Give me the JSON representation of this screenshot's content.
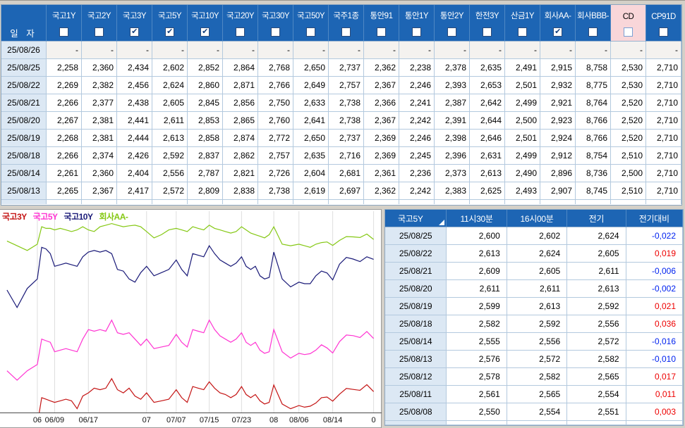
{
  "window": {
    "bg": "#d4d0c8",
    "header_blue": "#1d65b4",
    "date_cell_bg": "#dce8f4",
    "grid_line": "#b3c9de",
    "highlight_pink": "#f9d6d9",
    "positive_red": "#ee0000",
    "negative_blue": "#0022f0"
  },
  "top_table": {
    "date_header": "일 자",
    "columns": [
      {
        "label": "국고1Y",
        "checked": false,
        "highlight": false
      },
      {
        "label": "국고2Y",
        "checked": false,
        "highlight": false
      },
      {
        "label": "국고3Y",
        "checked": true,
        "highlight": false
      },
      {
        "label": "국고5Y",
        "checked": true,
        "highlight": false
      },
      {
        "label": "국고10Y",
        "checked": true,
        "highlight": false
      },
      {
        "label": "국고20Y",
        "checked": false,
        "highlight": false
      },
      {
        "label": "국고30Y",
        "checked": false,
        "highlight": false
      },
      {
        "label": "국고50Y",
        "checked": false,
        "highlight": false
      },
      {
        "label": "국주1종",
        "checked": false,
        "highlight": false
      },
      {
        "label": "통안91",
        "checked": false,
        "highlight": false
      },
      {
        "label": "통안1Y",
        "checked": false,
        "highlight": false
      },
      {
        "label": "통안2Y",
        "checked": false,
        "highlight": false
      },
      {
        "label": "한전3Y",
        "checked": false,
        "highlight": false
      },
      {
        "label": "산금1Y",
        "checked": false,
        "highlight": false
      },
      {
        "label": "회사AA-",
        "checked": true,
        "highlight": false
      },
      {
        "label": "회사BBB-",
        "checked": false,
        "highlight": false
      },
      {
        "label": "CD",
        "checked": false,
        "highlight": true
      },
      {
        "label": "CP91D",
        "checked": false,
        "highlight": false
      }
    ],
    "rows": [
      {
        "date": "25/08/26",
        "dim": true,
        "values": [
          "-",
          "-",
          "-",
          "-",
          "-",
          "-",
          "-",
          "-",
          "-",
          "-",
          "-",
          "-",
          "-",
          "-",
          "-",
          "-",
          "-",
          "-"
        ]
      },
      {
        "date": "25/08/25",
        "dim": false,
        "values": [
          "2,258",
          "2,360",
          "2,434",
          "2,602",
          "2,852",
          "2,864",
          "2,768",
          "2,650",
          "2,737",
          "2,362",
          "2,238",
          "2,378",
          "2,635",
          "2,491",
          "2,915",
          "8,758",
          "2,530",
          "2,710"
        ]
      },
      {
        "date": "25/08/22",
        "dim": false,
        "values": [
          "2,269",
          "2,382",
          "2,456",
          "2,624",
          "2,860",
          "2,871",
          "2,766",
          "2,649",
          "2,757",
          "2,367",
          "2,246",
          "2,393",
          "2,653",
          "2,501",
          "2,932",
          "8,775",
          "2,530",
          "2,710"
        ]
      },
      {
        "date": "25/08/21",
        "dim": false,
        "values": [
          "2,266",
          "2,377",
          "2,438",
          "2,605",
          "2,845",
          "2,856",
          "2,750",
          "2,633",
          "2,738",
          "2,366",
          "2,241",
          "2,387",
          "2,642",
          "2,499",
          "2,921",
          "8,764",
          "2,520",
          "2,710"
        ]
      },
      {
        "date": "25/08/20",
        "dim": false,
        "values": [
          "2,267",
          "2,381",
          "2,441",
          "2,611",
          "2,853",
          "2,865",
          "2,760",
          "2,641",
          "2,738",
          "2,367",
          "2,242",
          "2,391",
          "2,644",
          "2,500",
          "2,923",
          "8,766",
          "2,520",
          "2,710"
        ]
      },
      {
        "date": "25/08/19",
        "dim": false,
        "values": [
          "2,268",
          "2,381",
          "2,444",
          "2,613",
          "2,858",
          "2,874",
          "2,772",
          "2,650",
          "2,737",
          "2,369",
          "2,246",
          "2,398",
          "2,646",
          "2,501",
          "2,924",
          "8,766",
          "2,520",
          "2,710"
        ]
      },
      {
        "date": "25/08/18",
        "dim": false,
        "values": [
          "2,266",
          "2,374",
          "2,426",
          "2,592",
          "2,837",
          "2,862",
          "2,757",
          "2,635",
          "2,716",
          "2,369",
          "2,245",
          "2,396",
          "2,631",
          "2,499",
          "2,912",
          "8,754",
          "2,510",
          "2,710"
        ]
      },
      {
        "date": "25/08/14",
        "dim": false,
        "values": [
          "2,261",
          "2,360",
          "2,404",
          "2,556",
          "2,787",
          "2,821",
          "2,726",
          "2,604",
          "2,681",
          "2,361",
          "2,236",
          "2,373",
          "2,613",
          "2,490",
          "2,896",
          "8,736",
          "2,500",
          "2,710"
        ]
      },
      {
        "date": "25/08/13",
        "dim": false,
        "values": [
          "2,265",
          "2,367",
          "2,417",
          "2,572",
          "2,809",
          "2,838",
          "2,738",
          "2,619",
          "2,697",
          "2,362",
          "2,242",
          "2,383",
          "2,625",
          "2,493",
          "2,907",
          "8,745",
          "2,510",
          "2,710"
        ]
      }
    ]
  },
  "chart_data": {
    "type": "line",
    "title": "",
    "xlabel": "",
    "ylabel": "",
    "grid": "vertical-only",
    "legend_position": "top-left-overlay",
    "ymin": 2.368,
    "ymax": 3.002,
    "x_tick_labels": [
      "06",
      "06/09",
      "06/17",
      "07",
      "07/07",
      "07/15",
      "07/23",
      "08",
      "08/06",
      "08/14",
      "0"
    ],
    "ticks": [
      {
        "label": "06",
        "i": 3
      },
      {
        "label": "06/09",
        "i": 7
      },
      {
        "label": "06/17",
        "i": 13
      },
      {
        "label": "07",
        "i": 23
      },
      {
        "label": "07/07",
        "i": 27
      },
      {
        "label": "07/15",
        "i": 33
      },
      {
        "label": "07/23",
        "i": 39
      },
      {
        "label": "08",
        "i": 46
      },
      {
        "label": "08/06",
        "i": 49
      },
      {
        "label": "08/14",
        "i": 55
      },
      {
        "label": "0",
        "i": 61
      }
    ],
    "x_anchors": [
      [
        0,
        0.011
      ],
      [
        3,
        0.092
      ],
      [
        7,
        0.138
      ],
      [
        13,
        0.228
      ],
      [
        23,
        0.383
      ],
      [
        27,
        0.462
      ],
      [
        33,
        0.55
      ],
      [
        39,
        0.636
      ],
      [
        46,
        0.722
      ],
      [
        49,
        0.789
      ],
      [
        55,
        0.879
      ],
      [
        61,
        0.988
      ]
    ],
    "dates": [
      "05/28",
      "05/29",
      "05/30",
      "06/02",
      "06/03",
      "06/04",
      "06/05",
      "06/09",
      "06/10",
      "06/11",
      "06/12",
      "06/13",
      "06/16",
      "06/17",
      "06/18",
      "06/19",
      "06/20",
      "06/23",
      "06/24",
      "06/25",
      "06/26",
      "06/27",
      "06/30",
      "07/01",
      "07/02",
      "07/03",
      "07/04",
      "07/07",
      "07/08",
      "07/09",
      "07/10",
      "07/11",
      "07/14",
      "07/15",
      "07/16",
      "07/17",
      "07/18",
      "07/21",
      "07/22",
      "07/23",
      "07/24",
      "07/25",
      "07/28",
      "07/29",
      "07/30",
      "07/31",
      "08/01",
      "08/04",
      "08/05",
      "08/06",
      "08/07",
      "08/08",
      "08/11",
      "08/12",
      "08/13",
      "08/14",
      "08/18",
      "08/19",
      "08/20",
      "08/21",
      "08/22",
      "08/25"
    ],
    "series": [
      {
        "name": "국고3Y",
        "color": "#c41414",
        "values": [
          2.3,
          2.29,
          2.31,
          2.33,
          2.415,
          2.41,
          2.405,
          2.4,
          2.405,
          2.41,
          2.405,
          2.38,
          2.42,
          2.43,
          2.445,
          2.44,
          2.445,
          2.475,
          2.44,
          2.43,
          2.445,
          2.42,
          2.41,
          2.43,
          2.4,
          2.405,
          2.41,
          2.44,
          2.415,
          2.4,
          2.45,
          2.445,
          2.44,
          2.465,
          2.445,
          2.43,
          2.425,
          2.415,
          2.425,
          2.45,
          2.425,
          2.415,
          2.425,
          2.405,
          2.395,
          2.4,
          2.455,
          2.395,
          2.38,
          2.39,
          2.385,
          2.388,
          2.398,
          2.415,
          2.417,
          2.404,
          2.426,
          2.444,
          2.441,
          2.438,
          2.456,
          2.434
        ]
      },
      {
        "name": "국고5Y",
        "color": "#ff34d2",
        "values": [
          2.5,
          2.47,
          2.5,
          2.52,
          2.6,
          2.595,
          2.59,
          2.56,
          2.565,
          2.57,
          2.565,
          2.56,
          2.6,
          2.63,
          2.625,
          2.63,
          2.625,
          2.66,
          2.62,
          2.615,
          2.62,
          2.6,
          2.58,
          2.6,
          2.57,
          2.575,
          2.58,
          2.615,
          2.59,
          2.575,
          2.63,
          2.625,
          2.62,
          2.66,
          2.63,
          2.61,
          2.6,
          2.59,
          2.6,
          2.62,
          2.59,
          2.58,
          2.59,
          2.565,
          2.555,
          2.56,
          2.63,
          2.56,
          2.54,
          2.555,
          2.551,
          2.554,
          2.565,
          2.582,
          2.572,
          2.556,
          2.592,
          2.613,
          2.611,
          2.605,
          2.624,
          2.602
        ]
      },
      {
        "name": "국고10Y",
        "color": "#1a1a78",
        "values": [
          2.755,
          2.7,
          2.76,
          2.79,
          2.89,
          2.885,
          2.87,
          2.83,
          2.835,
          2.84,
          2.835,
          2.83,
          2.86,
          2.875,
          2.88,
          2.875,
          2.88,
          2.87,
          2.82,
          2.815,
          2.79,
          2.78,
          2.81,
          2.83,
          2.8,
          2.81,
          2.82,
          2.85,
          2.82,
          2.8,
          2.87,
          2.865,
          2.86,
          2.895,
          2.87,
          2.85,
          2.84,
          2.83,
          2.84,
          2.86,
          2.83,
          2.82,
          2.83,
          2.8,
          2.79,
          2.795,
          2.875,
          2.79,
          2.765,
          2.78,
          2.775,
          2.775,
          2.8,
          2.815,
          2.809,
          2.787,
          2.837,
          2.858,
          2.853,
          2.845,
          2.86,
          2.852
        ]
      },
      {
        "name": "회사AA-",
        "color": "#85c814",
        "values": [
          2.91,
          2.895,
          2.88,
          2.9,
          2.955,
          2.95,
          2.95,
          2.945,
          2.95,
          2.945,
          2.94,
          2.945,
          2.955,
          2.945,
          2.94,
          2.955,
          2.96,
          2.965,
          2.96,
          2.955,
          2.958,
          2.96,
          2.955,
          2.94,
          2.92,
          2.93,
          2.945,
          2.95,
          2.945,
          2.94,
          2.955,
          2.95,
          2.945,
          2.96,
          2.95,
          2.945,
          2.94,
          2.935,
          2.94,
          2.955,
          2.945,
          2.935,
          2.93,
          2.925,
          2.92,
          2.93,
          2.955,
          2.9,
          2.895,
          2.9,
          2.895,
          2.89,
          2.9,
          2.905,
          2.907,
          2.896,
          2.912,
          2.924,
          2.923,
          2.921,
          2.932,
          2.915
        ]
      }
    ]
  },
  "right_table": {
    "headers": [
      "국고5Y",
      "11시30분",
      "16시00분",
      "전기",
      "전기대비"
    ],
    "rows": [
      {
        "date": "25/08/25",
        "t1130": "2,600",
        "t1600": "2,602",
        "prev": "2,624",
        "chg": "-0,022",
        "dir": "down"
      },
      {
        "date": "25/08/22",
        "t1130": "2,613",
        "t1600": "2,624",
        "prev": "2,605",
        "chg": "0,019",
        "dir": "up"
      },
      {
        "date": "25/08/21",
        "t1130": "2,609",
        "t1600": "2,605",
        "prev": "2,611",
        "chg": "-0,006",
        "dir": "down"
      },
      {
        "date": "25/08/20",
        "t1130": "2,611",
        "t1600": "2,611",
        "prev": "2,613",
        "chg": "-0,002",
        "dir": "down"
      },
      {
        "date": "25/08/19",
        "t1130": "2,599",
        "t1600": "2,613",
        "prev": "2,592",
        "chg": "0,021",
        "dir": "up"
      },
      {
        "date": "25/08/18",
        "t1130": "2,582",
        "t1600": "2,592",
        "prev": "2,556",
        "chg": "0,036",
        "dir": "up"
      },
      {
        "date": "25/08/14",
        "t1130": "2,555",
        "t1600": "2,556",
        "prev": "2,572",
        "chg": "-0,016",
        "dir": "down"
      },
      {
        "date": "25/08/13",
        "t1130": "2,576",
        "t1600": "2,572",
        "prev": "2,582",
        "chg": "-0,010",
        "dir": "down"
      },
      {
        "date": "25/08/12",
        "t1130": "2,578",
        "t1600": "2,582",
        "prev": "2,565",
        "chg": "0,017",
        "dir": "up"
      },
      {
        "date": "25/08/11",
        "t1130": "2,561",
        "t1600": "2,565",
        "prev": "2,554",
        "chg": "0,011",
        "dir": "up"
      },
      {
        "date": "25/08/08",
        "t1130": "2,550",
        "t1600": "2,554",
        "prev": "2,551",
        "chg": "0,003",
        "dir": "up"
      }
    ]
  }
}
